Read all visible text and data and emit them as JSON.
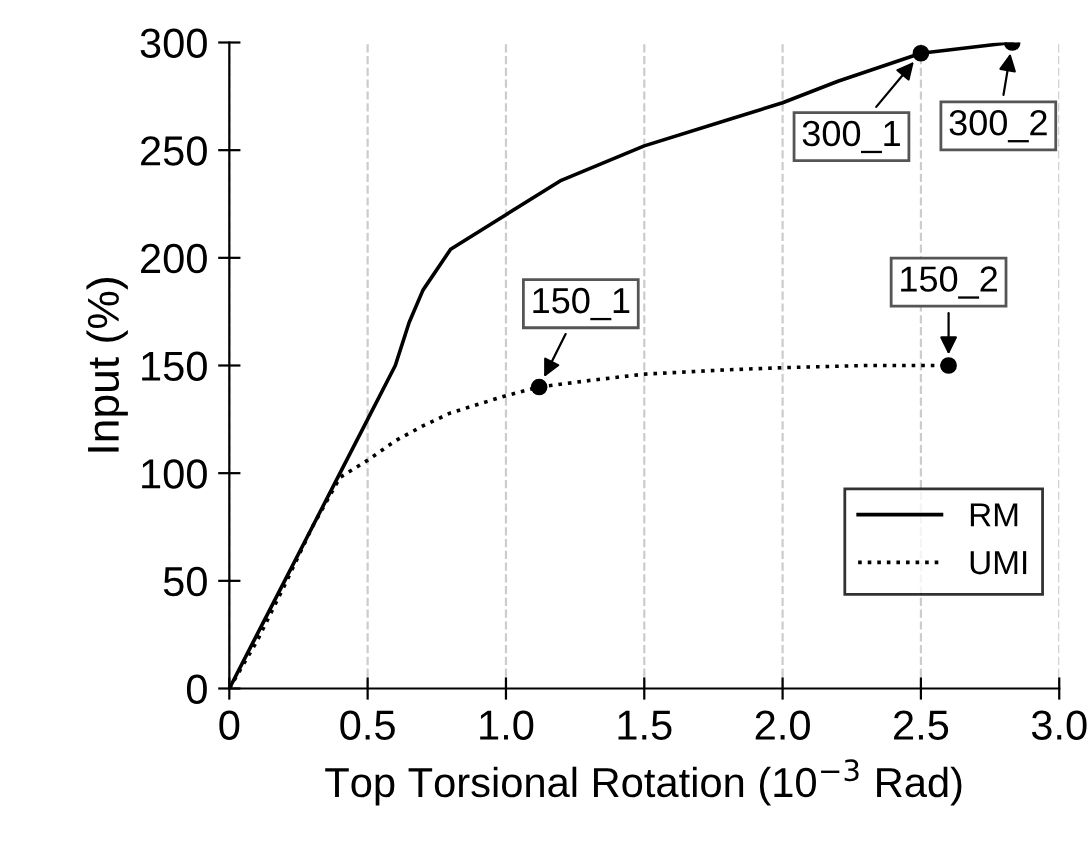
{
  "chart_data": {
    "type": "line",
    "xlabel": "Top Torsional Rotation (10$^{−3}$ Rad)",
    "ylabel": "Input (%)",
    "xlim": [
      0,
      3.0
    ],
    "ylim": [
      0,
      300
    ],
    "xticks": [
      0,
      0.5,
      {
        "value": 1,
        "label": "1.0"
      },
      1.5,
      {
        "value": 2,
        "label": "2.0"
      },
      2.5,
      {
        "value": 3,
        "label": "3.0"
      }
    ],
    "yticks": [
      0,
      50,
      100,
      150,
      200,
      250,
      300
    ],
    "grid": "x",
    "legend": "bottom right",
    "marker": "none",
    "series": [
      {
        "name": "RM",
        "color": "#000000",
        "line_style": "solid",
        "x": [
          0,
          0.1,
          0.2,
          0.3,
          0.4,
          0.5,
          0.6,
          0.65,
          0.7,
          0.8,
          0.9,
          1.0,
          1.2,
          1.5,
          1.8,
          2.0,
          2.2,
          2.5,
          2.83
        ],
        "values": [
          0,
          25,
          50,
          75,
          100,
          125,
          150,
          170,
          185,
          204,
          212,
          220,
          236,
          252,
          264,
          272,
          282,
          295,
          300
        ]
      },
      {
        "name": "UMI",
        "color": "#000000",
        "line_style": "dotted",
        "x": [
          0,
          0.1,
          0.2,
          0.3,
          0.4,
          0.45,
          0.5,
          0.6,
          0.7,
          0.8,
          0.9,
          1.0,
          1.12,
          1.3,
          1.5,
          1.8,
          2.0,
          2.3,
          2.6
        ],
        "values": [
          0,
          22,
          48,
          75,
          98,
          102,
          106,
          115,
          122,
          128,
          132,
          136,
          140,
          143,
          146,
          148,
          149,
          150,
          150
        ]
      }
    ],
    "annotations": [
      {
        "text": "150_1",
        "x": 1.12,
        "y": 140
      },
      {
        "text": "150_2",
        "x": 2.6,
        "y": 150
      },
      {
        "text": "300_1",
        "x": 2.5,
        "y": 295
      },
      {
        "text": "300_2",
        "x": 2.83,
        "y": 300
      }
    ]
  }
}
